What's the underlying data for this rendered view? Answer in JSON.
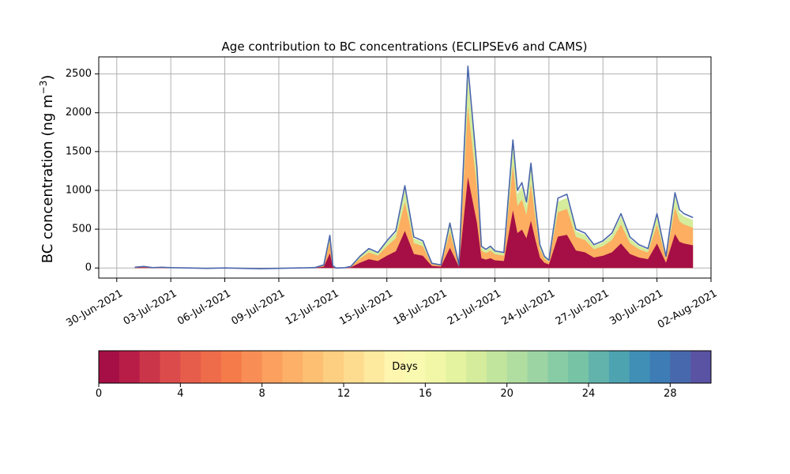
{
  "chart_data": {
    "type": "area",
    "title": "Age contribution to BC concentrations (ECLIPSEv6 and CAMS)",
    "xlabel": "",
    "ylabel": "BC concentration (ng m",
    "ylabel_superscript": "−3",
    "ylabel_suffix": ")",
    "x_range": [
      "2021-06-29",
      "2021-08-02"
    ],
    "ylim": [
      -130,
      2720
    ],
    "grid": true,
    "x_ticks": [
      "30-Jun-2021",
      "03-Jul-2021",
      "06-Jul-2021",
      "09-Jul-2021",
      "12-Jul-2021",
      "15-Jul-2021",
      "18-Jul-2021",
      "21-Jul-2021",
      "24-Jul-2021",
      "27-Jul-2021",
      "30-Jul-2021",
      "02-Aug-2021"
    ],
    "x_tick_dates": [
      "2021-06-30",
      "2021-07-03",
      "2021-07-06",
      "2021-07-09",
      "2021-07-12",
      "2021-07-15",
      "2021-07-18",
      "2021-07-21",
      "2021-07-24",
      "2021-07-27",
      "2021-07-30",
      "2021-08-02"
    ],
    "y_ticks": [
      0,
      500,
      1000,
      1500,
      2000,
      2500
    ],
    "total_series": {
      "name": "",
      "color": "#4a66ac",
      "x": [
        "2021-07-01 00:00",
        "2021-07-01 12:00",
        "2021-07-02 00:00",
        "2021-07-02 12:00",
        "2021-07-03 00:00",
        "2021-07-04 00:00",
        "2021-07-05 00:00",
        "2021-07-06 00:00",
        "2021-07-07 00:00",
        "2021-07-08 00:00",
        "2021-07-09 00:00",
        "2021-07-10 00:00",
        "2021-07-11 00:00",
        "2021-07-11 12:00",
        "2021-07-11 20:00",
        "2021-07-12 00:00",
        "2021-07-12 04:00",
        "2021-07-12 08:00",
        "2021-07-12 16:00",
        "2021-07-13 00:00",
        "2021-07-13 12:00",
        "2021-07-14 00:00",
        "2021-07-14 12:00",
        "2021-07-15 00:00",
        "2021-07-15 12:00",
        "2021-07-16 00:00",
        "2021-07-16 12:00",
        "2021-07-17 00:00",
        "2021-07-17 06:00",
        "2021-07-17 12:00",
        "2021-07-18 00:00",
        "2021-07-18 12:00",
        "2021-07-19 00:00",
        "2021-07-19 12:00",
        "2021-07-20 00:00",
        "2021-07-20 06:00",
        "2021-07-20 12:00",
        "2021-07-20 18:00",
        "2021-07-21 00:00",
        "2021-07-21 12:00",
        "2021-07-22 00:00",
        "2021-07-22 06:00",
        "2021-07-22 12:00",
        "2021-07-22 18:00",
        "2021-07-23 00:00",
        "2021-07-23 06:00",
        "2021-07-23 12:00",
        "2021-07-23 18:00",
        "2021-07-24 00:00",
        "2021-07-24 12:00",
        "2021-07-25 00:00",
        "2021-07-25 12:00",
        "2021-07-26 00:00",
        "2021-07-26 12:00",
        "2021-07-27 00:00",
        "2021-07-27 12:00",
        "2021-07-28 00:00",
        "2021-07-28 12:00",
        "2021-07-29 00:00",
        "2021-07-29 12:00",
        "2021-07-30 00:00",
        "2021-07-30 12:00",
        "2021-07-31 00:00",
        "2021-07-31 06:00",
        "2021-07-31 12:00",
        "2021-08-01 00:00"
      ],
      "y": [
        10,
        20,
        5,
        10,
        5,
        0,
        -5,
        0,
        -5,
        -10,
        -5,
        0,
        5,
        40,
        420,
        30,
        0,
        0,
        5,
        20,
        150,
        250,
        200,
        350,
        480,
        1060,
        400,
        350,
        200,
        60,
        40,
        580,
        40,
        2600,
        1300,
        280,
        240,
        280,
        220,
        200,
        1650,
        1000,
        1100,
        850,
        1350,
        800,
        300,
        150,
        100,
        900,
        950,
        500,
        450,
        300,
        350,
        450,
        700,
        400,
        300,
        250,
        700,
        150,
        970,
        750,
        700,
        650
      ]
    },
    "colorbar": {
      "label": "Days",
      "min": 0,
      "max": 30,
      "ticks": [
        0,
        4,
        8,
        12,
        16,
        20,
        24,
        28
      ],
      "colors": [
        "#a50f45",
        "#b81d47",
        "#cb3549",
        "#dc4b4b",
        "#e65d4b",
        "#ef6c4a",
        "#f57b4b",
        "#f88e55",
        "#fba05f",
        "#fcb068",
        "#fdc073",
        "#fdcf81",
        "#fddc8f",
        "#feea9e",
        "#fef5ae",
        "#faf9b0",
        "#f1f7a7",
        "#e4f39f",
        "#d4ec9b",
        "#c2e59e",
        "#b0dda0",
        "#9dd4a3",
        "#88cca5",
        "#76c3a6",
        "#62b3ab",
        "#4ea3b1",
        "#3f8fb6",
        "#3e7cb5",
        "#4868ad",
        "#5a52a3"
      ]
    },
    "age_layers_note_colors": {
      "recent": "#a50f45",
      "mid": "#fdae61",
      "old": "#d4ec9b"
    }
  }
}
